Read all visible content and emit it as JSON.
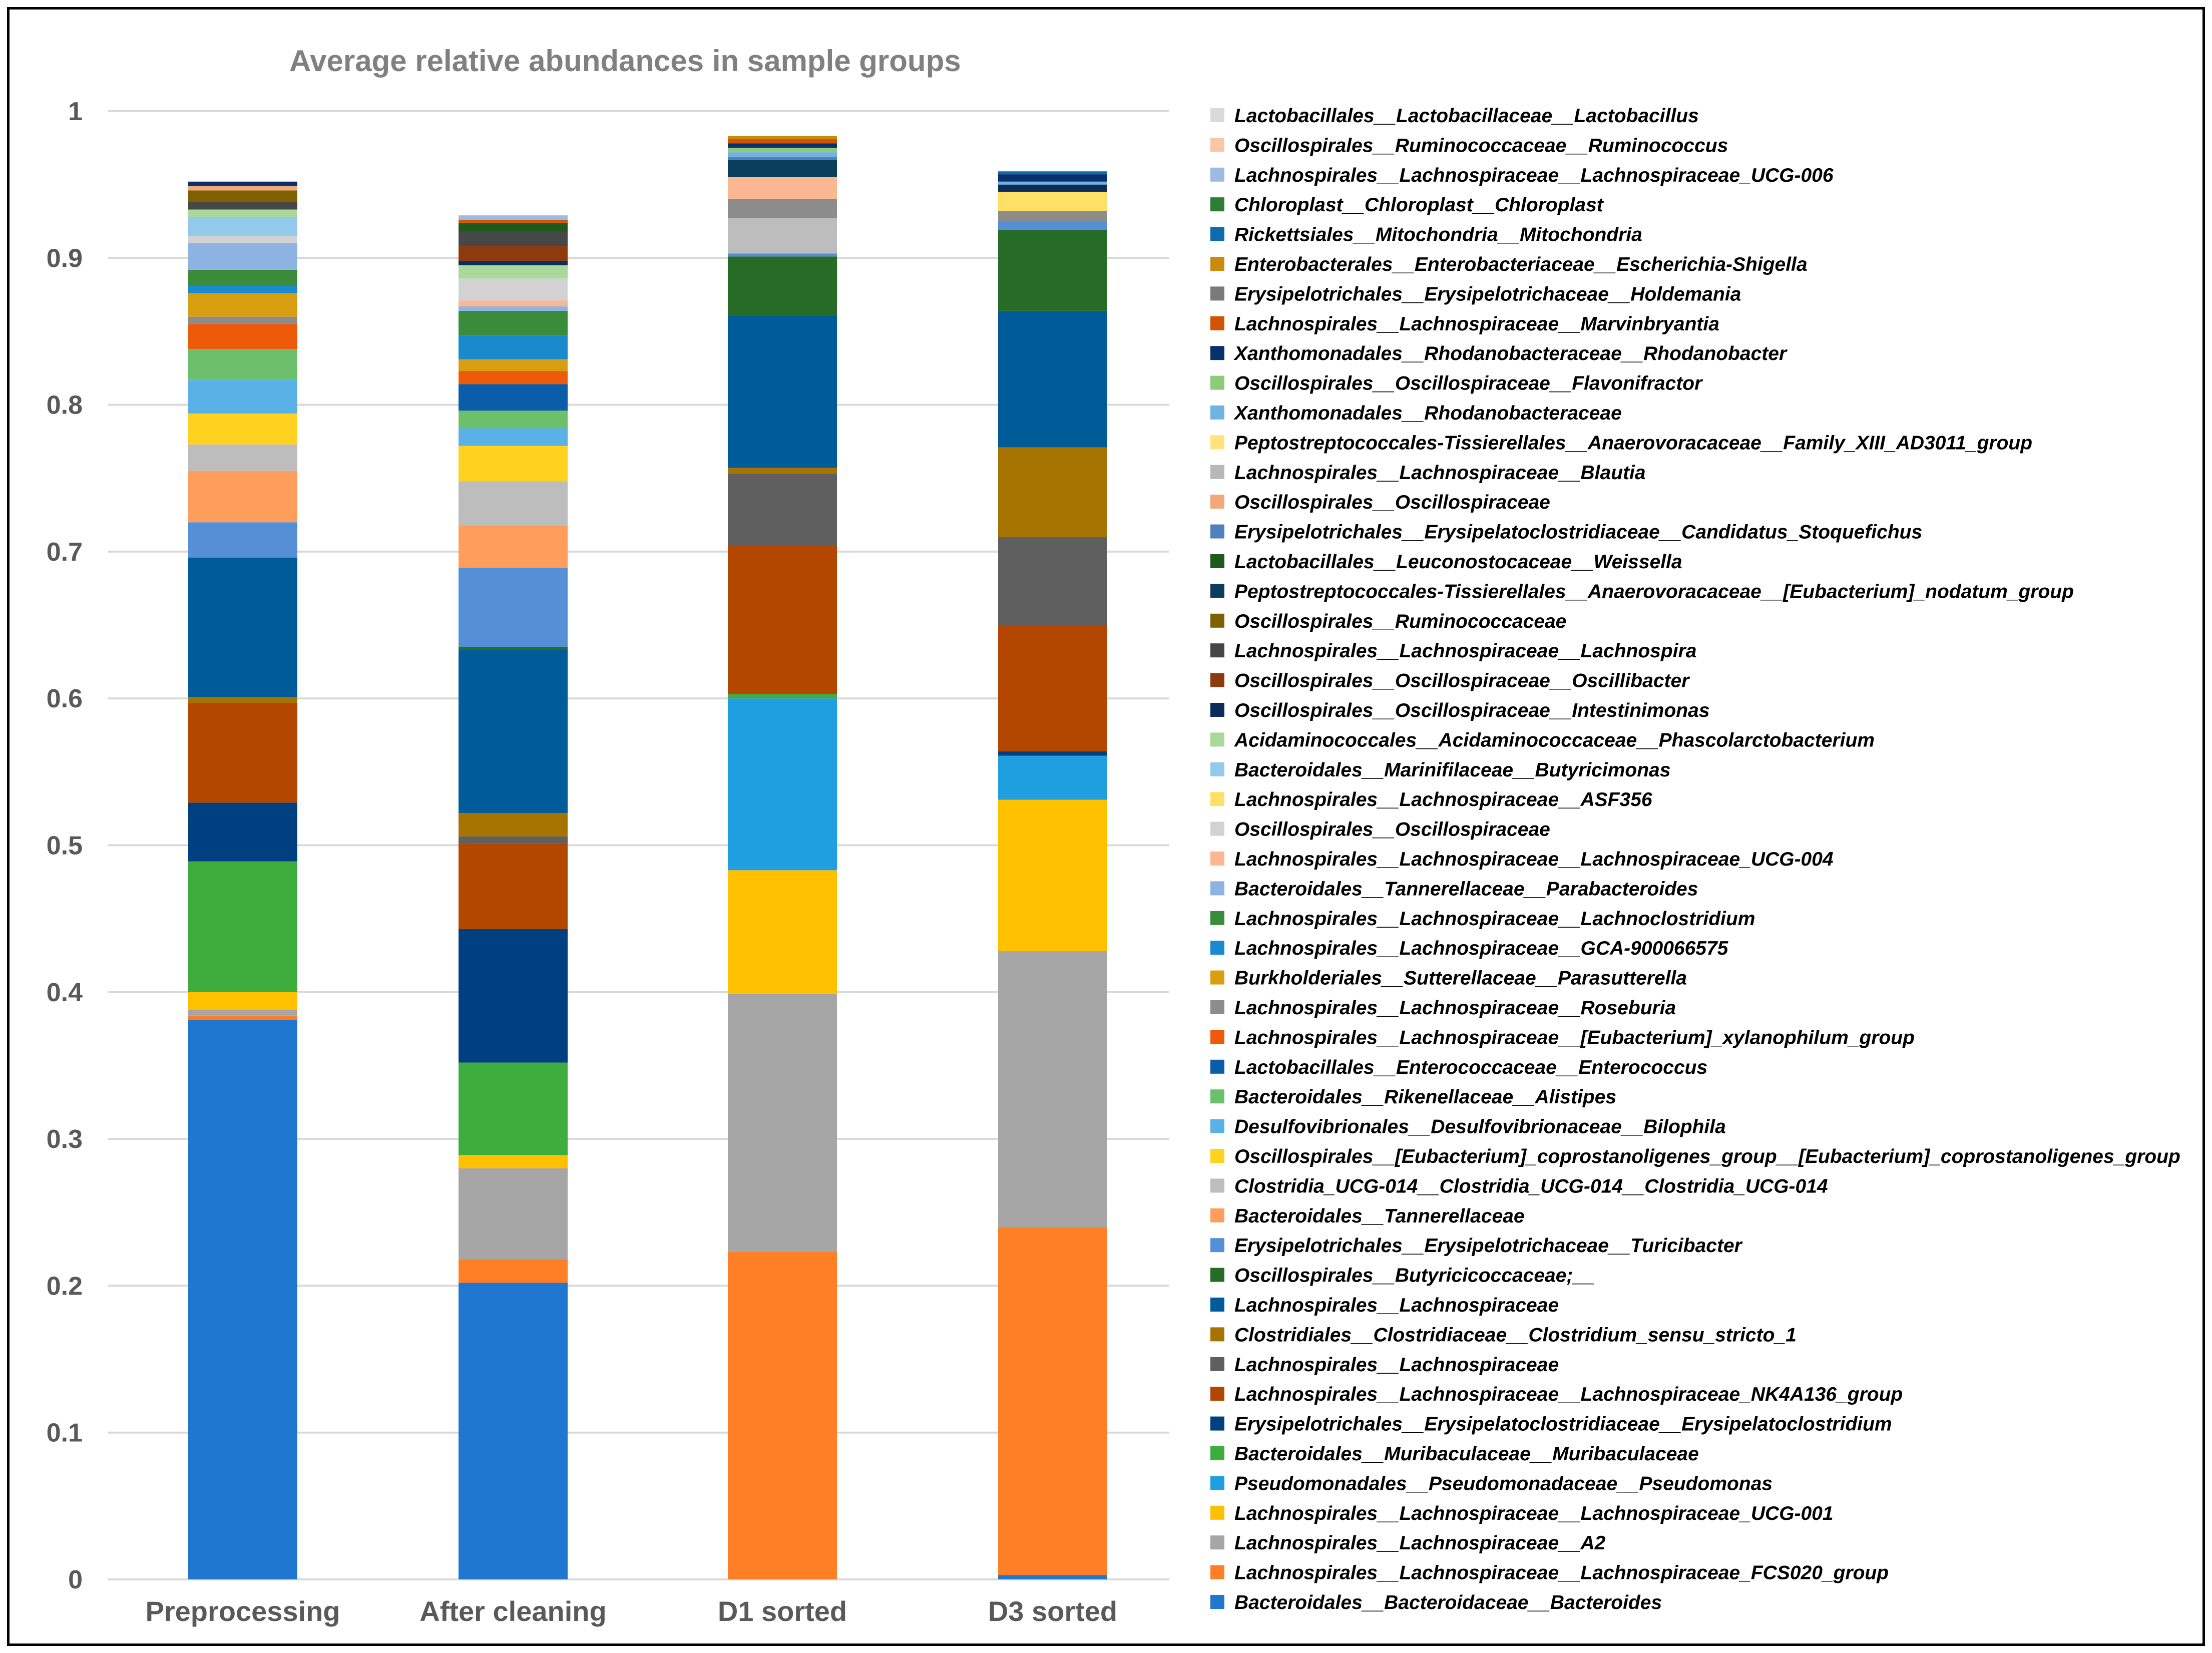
{
  "chart_data": {
    "type": "bar",
    "stacked": true,
    "title": "Average relative abundances in sample groups",
    "xlabel": "",
    "ylabel": "",
    "ylim": [
      0,
      1
    ],
    "yticks": [
      "0",
      "0.1",
      "0.2",
      "0.3",
      "0.4",
      "0.5",
      "0.6",
      "0.7",
      "0.8",
      "0.9",
      "1"
    ],
    "categories": [
      "Preprocessing",
      "After cleaning",
      "D1 sorted",
      "D3 sorted"
    ],
    "legend_position": "right",
    "series": [
      {
        "name": "Bacteroidales__Bacteroidaceae__Bacteroides",
        "color": "#1F77D0",
        "values": [
          0.381,
          0.202,
          0.0,
          0.003
        ]
      },
      {
        "name": "Lachnospirales__Lachnospiraceae__Lachnospiraceae_FCS020_group",
        "color": "#FF7F27",
        "values": [
          0.003,
          0.016,
          0.223,
          0.237
        ]
      },
      {
        "name": "Lachnospirales__Lachnospiraceae__A2",
        "color": "#A6A6A6",
        "values": [
          0.004,
          0.062,
          0.176,
          0.188
        ]
      },
      {
        "name": "Lachnospirales__Lachnospiraceae__Lachnospiraceae_UCG-001",
        "color": "#FFC000",
        "values": [
          0.012,
          0.009,
          0.084,
          0.103
        ]
      },
      {
        "name": "Pseudomonadales__Pseudomonadaceae__Pseudomonas",
        "color": "#1F9FE0",
        "values": [
          0.0,
          0.0,
          0.117,
          0.03
        ]
      },
      {
        "name": "Bacteroidales__Muribaculaceae__Muribaculaceae",
        "color": "#3DAE3D",
        "values": [
          0.089,
          0.063,
          0.003,
          0.0
        ]
      },
      {
        "name": "Erysipelotrichales__Erysipelatoclostridiaceae__Erysipelatoclostridium",
        "color": "#004080",
        "values": [
          0.04,
          0.091,
          0.0,
          0.003
        ]
      },
      {
        "name": "Lachnospirales__Lachnospiraceae__Lachnospiraceae_NK4A136_group",
        "color": "#B34700",
        "values": [
          0.068,
          0.058,
          0.101,
          0.086
        ]
      },
      {
        "name": "Lachnospirales__Lachnospiraceae",
        "color": "#5F5F5F",
        "values": [
          0.0,
          0.005,
          0.049,
          0.06
        ]
      },
      {
        "name": "Clostridiales__Clostridiaceae__Clostridium_sensu_stricto_1",
        "color": "#A67300",
        "values": [
          0.004,
          0.016,
          0.004,
          0.061
        ]
      },
      {
        "name": "Lachnospirales__Lachnospiraceae",
        "color": "#005C99",
        "values": [
          0.095,
          0.111,
          0.104,
          0.093
        ]
      },
      {
        "name": "Oscillospirales__Butyricicoccaceae;__",
        "color": "#266B26",
        "values": [
          0.0,
          0.002,
          0.04,
          0.055
        ]
      },
      {
        "name": "Erysipelotrichales__Erysipelotrichaceae__Turicibacter",
        "color": "#5590D6",
        "values": [
          0.024,
          0.054,
          0.002,
          0.006
        ]
      },
      {
        "name": "Bacteroidales__Tannerellaceae",
        "color": "#FF9E5C",
        "values": [
          0.035,
          0.029,
          0.0,
          0.0
        ]
      },
      {
        "name": "Clostridia_UCG-014__Clostridia_UCG-014__Clostridia_UCG-014",
        "color": "#BDBDBD",
        "values": [
          0.018,
          0.03,
          0.024,
          0.0
        ]
      },
      {
        "name": "Oscillospirales__[Eubacterium]_coprostanoligenes_group__[Eubacterium]_coprostanoligenes_group",
        "color": "#FFD21F",
        "values": [
          0.021,
          0.024,
          0.0,
          0.0
        ]
      },
      {
        "name": "Desulfovibrionales__Desulfovibrionaceae__Bilophila",
        "color": "#59B1E6",
        "values": [
          0.023,
          0.012,
          0.0,
          0.0
        ]
      },
      {
        "name": "Bacteroidales__Rikenellaceae__Alistipes",
        "color": "#6CC06C",
        "values": [
          0.021,
          0.012,
          0.0,
          0.0
        ]
      },
      {
        "name": "Lactobacillales__Enterococcaceae__Enterococcus",
        "color": "#0A5DA8",
        "values": [
          0.0,
          0.018,
          0.0,
          0.0
        ]
      },
      {
        "name": "Lachnospirales__Lachnospiraceae__[Eubacterium]_xylanophilum_group",
        "color": "#ED5A0A",
        "values": [
          0.017,
          0.009,
          0.0,
          0.0
        ]
      },
      {
        "name": "Lachnospirales__Lachnospiraceae__Roseburia",
        "color": "#8C8C8C",
        "values": [
          0.005,
          0.0,
          0.013,
          0.007
        ]
      },
      {
        "name": "Burkholderiales__Sutterellaceae__Parasutterella",
        "color": "#D89E12",
        "values": [
          0.016,
          0.008,
          0.0,
          0.0
        ]
      },
      {
        "name": "Lachnospirales__Lachnospiraceae__GCA-900066575",
        "color": "#1A8ACF",
        "values": [
          0.005,
          0.016,
          0.0,
          0.0
        ]
      },
      {
        "name": "Lachnospirales__Lachnospiraceae__Lachnoclostridium",
        "color": "#3A8C3A",
        "values": [
          0.011,
          0.017,
          0.0,
          0.0
        ]
      },
      {
        "name": "Bacteroidales__Tannerellaceae__Parabacteroides",
        "color": "#8DB3E2",
        "values": [
          0.018,
          0.003,
          0.0,
          0.0
        ]
      },
      {
        "name": "Lachnospirales__Lachnospiraceae__Lachnospiraceae_UCG-004",
        "color": "#FBB692",
        "values": [
          0.0,
          0.004,
          0.015,
          0.0
        ]
      },
      {
        "name": "Oscillospirales__Oscillospiraceae",
        "color": "#D2D2D2",
        "values": [
          0.005,
          0.015,
          0.0,
          0.0
        ]
      },
      {
        "name": "Lachnospirales__Lachnospiraceae__ASF356",
        "color": "#FFE066",
        "values": [
          0.0,
          0.0,
          0.0,
          0.013
        ]
      },
      {
        "name": "Bacteroidales__Marinifilaceae__Butyricimonas",
        "color": "#93C9EB",
        "values": [
          0.013,
          0.0,
          0.0,
          0.0
        ]
      },
      {
        "name": "Acidaminococcales__Acidaminococcaceae__Phascolarctobacterium",
        "color": "#A8D99A",
        "values": [
          0.005,
          0.009,
          0.0,
          0.0
        ]
      },
      {
        "name": "Oscillospirales__Oscillospiraceae__Intestinimonas",
        "color": "#0C2D5A",
        "values": [
          0.0,
          0.003,
          0.0,
          0.005
        ]
      },
      {
        "name": "Oscillospirales__Oscillospiraceae__Oscillibacter",
        "color": "#8C3A0E",
        "values": [
          0.0,
          0.01,
          0.0,
          0.0
        ]
      },
      {
        "name": "Lachnospirales__Lachnospiraceae__Lachnospira",
        "color": "#474747",
        "values": [
          0.005,
          0.01,
          0.0,
          0.0
        ]
      },
      {
        "name": "Oscillospirales__Ruminococcaceae",
        "color": "#7F6000",
        "values": [
          0.008,
          0.0,
          0.0,
          0.0
        ]
      },
      {
        "name": "Peptostreptococcales-Tissierellales__Anaerovoracaceae__[Eubacterium]_nodatum_group",
        "color": "#0B3D5C",
        "values": [
          0.0,
          0.0,
          0.012,
          0.0
        ]
      },
      {
        "name": "Lactobacillales__Leuconostocaceae__Weissella",
        "color": "#1E5A1E",
        "values": [
          0.0,
          0.006,
          0.0,
          0.0
        ]
      },
      {
        "name": "Erysipelotrichales__Erysipelatoclostridiaceae__Candidatus_Stoqueﬁchus",
        "color": "#4F81BD",
        "values": [
          0.0,
          0.0,
          0.002,
          0.0
        ]
      },
      {
        "name": "Oscillospirales__Oscillospiraceae",
        "color": "#F4A77B",
        "values": [
          0.003,
          0.0,
          0.0,
          0.0
        ]
      },
      {
        "name": "Lachnospirales__Lachnospiraceae__Blautia",
        "color": "#B8B8B8",
        "values": [
          0.0,
          0.0,
          0.0,
          0.0
        ]
      },
      {
        "name": "Peptostreptococcales-Tissierellales__Anaerovoracaceae__Family_XIII_AD3011_group",
        "color": "#FFE27A",
        "values": [
          0.0,
          0.0,
          0.0,
          0.0
        ]
      },
      {
        "name": "Xanthomonadales__Rhodanobacteraceae",
        "color": "#6FB4E0",
        "values": [
          0.0,
          0.0,
          0.003,
          0.002
        ]
      },
      {
        "name": "Oscillospirales__Oscillospiraceae__Flavonifractor",
        "color": "#8DCB7A",
        "values": [
          0.0,
          0.0,
          0.003,
          0.0
        ]
      },
      {
        "name": "Xanthomonadales__Rhodanobacteraceae__Rhodanobacter",
        "color": "#08306B",
        "values": [
          0.003,
          0.0,
          0.003,
          0.005
        ]
      },
      {
        "name": "Lachnospirales__Lachnospiraceae__Marvinbryantia",
        "color": "#D35400",
        "values": [
          0.0,
          0.002,
          0.003,
          0.0
        ]
      },
      {
        "name": "Erysipelotrichales__Erysipelotrichaceae__Holdemania",
        "color": "#7A7A7A",
        "values": [
          0.0,
          0.0,
          0.0,
          0.0
        ]
      },
      {
        "name": "Enterobacterales__Enterobacteriaceae__Escherichia-Shigella",
        "color": "#C98A0E",
        "values": [
          0.0,
          0.0,
          0.002,
          0.0
        ]
      },
      {
        "name": "Rickettsiales__Mitochondria__Mitochondria",
        "color": "#0E6BAE",
        "values": [
          0.0,
          0.0,
          0.0,
          0.002
        ]
      },
      {
        "name": "Chloroplast__Chloroplast__Chloroplast",
        "color": "#2E7D32",
        "values": [
          0.0,
          0.0,
          0.0,
          0.0
        ]
      },
      {
        "name": "Lachnospirales__Lachnospiraceae__Lachnospiraceae_UCG-006",
        "color": "#9DBAE0",
        "values": [
          0.0,
          0.003,
          0.0,
          0.0
        ]
      },
      {
        "name": "Oscillospirales__Ruminococcaceae__Ruminococcus",
        "color": "#F9C6A6",
        "values": [
          0.0,
          0.0,
          0.0,
          0.0
        ]
      },
      {
        "name": "Lactobacillales__Lactobacillaceae__Lactobacillus",
        "color": "#DADADA",
        "values": [
          0.0,
          0.0,
          0.0,
          0.0
        ]
      }
    ],
    "legend": [
      {
        "name": "Lactobacillales__Lactobacillaceae__Lactobacillus",
        "color": "#DADADA"
      },
      {
        "name": "Oscillospirales__Ruminococcaceae__Ruminococcus",
        "color": "#F9C6A6"
      },
      {
        "name": "Lachnospirales__Lachnospiraceae__Lachnospiraceae_UCG-006",
        "color": "#9DBAE0"
      },
      {
        "name": "Chloroplast__Chloroplast__Chloroplast",
        "color": "#2E7D32"
      },
      {
        "name": "Rickettsiales__Mitochondria__Mitochondria",
        "color": "#0E6BAE"
      },
      {
        "name": "Enterobacterales__Enterobacteriaceae__Escherichia-Shigella",
        "color": "#C98A0E"
      },
      {
        "name": "Erysipelotrichales__Erysipelotrichaceae__Holdemania",
        "color": "#7A7A7A"
      },
      {
        "name": "Lachnospirales__Lachnospiraceae__Marvinbryantia",
        "color": "#D35400"
      },
      {
        "name": "Xanthomonadales__Rhodanobacteraceae__Rhodanobacter",
        "color": "#08306B"
      },
      {
        "name": "Oscillospirales__Oscillospiraceae__Flavonifractor",
        "color": "#8DCB7A"
      },
      {
        "name": "Xanthomonadales__Rhodanobacteraceae",
        "color": "#6FB4E0"
      },
      {
        "name": "Peptostreptococcales-Tissierellales__Anaerovoracaceae__Family_XIII_AD3011_group",
        "color": "#FFE27A"
      },
      {
        "name": "Lachnospirales__Lachnospiraceae__Blautia",
        "color": "#B8B8B8"
      },
      {
        "name": "Oscillospirales__Oscillospiraceae",
        "color": "#F4A77B"
      },
      {
        "name": "Erysipelotrichales__Erysipelatoclostridiaceae__Candidatus_Stoqueﬁchus",
        "color": "#4F81BD"
      },
      {
        "name": "Lactobacillales__Leuconostocaceae__Weissella",
        "color": "#1E5A1E"
      },
      {
        "name": "Peptostreptococcales-Tissierellales__Anaerovoracaceae__[Eubacterium]_nodatum_group",
        "color": "#0B3D5C"
      },
      {
        "name": "Oscillospirales__Ruminococcaceae",
        "color": "#7F6000"
      },
      {
        "name": "Lachnospirales__Lachnospiraceae__Lachnospira",
        "color": "#474747"
      },
      {
        "name": "Oscillospirales__Oscillospiraceae__Oscillibacter",
        "color": "#8C3A0E"
      },
      {
        "name": "Oscillospirales__Oscillospiraceae__Intestinimonas",
        "color": "#0C2D5A"
      },
      {
        "name": "Acidaminococcales__Acidaminococcaceae__Phascolarctobacterium",
        "color": "#A8D99A"
      },
      {
        "name": "Bacteroidales__Marinifilaceae__Butyricimonas",
        "color": "#93C9EB"
      },
      {
        "name": "Lachnospirales__Lachnospiraceae__ASF356",
        "color": "#FFE066"
      },
      {
        "name": "Oscillospirales__Oscillospiraceae",
        "color": "#D2D2D2"
      },
      {
        "name": "Lachnospirales__Lachnospiraceae__Lachnospiraceae_UCG-004",
        "color": "#FBB692"
      },
      {
        "name": "Bacteroidales__Tannerellaceae__Parabacteroides",
        "color": "#8DB3E2"
      },
      {
        "name": "Lachnospirales__Lachnospiraceae__Lachnoclostridium",
        "color": "#3A8C3A"
      },
      {
        "name": "Lachnospirales__Lachnospiraceae__GCA-900066575",
        "color": "#1A8ACF"
      },
      {
        "name": "Burkholderiales__Sutterellaceae__Parasutterella",
        "color": "#D89E12"
      },
      {
        "name": "Lachnospirales__Lachnospiraceae__Roseburia",
        "color": "#8C8C8C"
      },
      {
        "name": "Lachnospirales__Lachnospiraceae__[Eubacterium]_xylanophilum_group",
        "color": "#ED5A0A"
      },
      {
        "name": "Lactobacillales__Enterococcaceae__Enterococcus",
        "color": "#0A5DA8"
      },
      {
        "name": "Bacteroidales__Rikenellaceae__Alistipes",
        "color": "#6CC06C"
      },
      {
        "name": "Desulfovibrionales__Desulfovibrionaceae__Bilophila",
        "color": "#59B1E6"
      },
      {
        "name": "Oscillospirales__[Eubacterium]_coprostanoligenes_group__[Eubacterium]_coprostanoligenes_group",
        "color": "#FFD21F"
      },
      {
        "name": "Clostridia_UCG-014__Clostridia_UCG-014__Clostridia_UCG-014",
        "color": "#BDBDBD"
      },
      {
        "name": "Bacteroidales__Tannerellaceae",
        "color": "#FF9E5C"
      },
      {
        "name": "Erysipelotrichales__Erysipelotrichaceae__Turicibacter",
        "color": "#5590D6"
      },
      {
        "name": "Oscillospirales__Butyricicoccaceae;__",
        "color": "#266B26"
      },
      {
        "name": "Lachnospirales__Lachnospiraceae",
        "color": "#005C99"
      },
      {
        "name": "Clostridiales__Clostridiaceae__Clostridium_sensu_stricto_1",
        "color": "#A67300"
      },
      {
        "name": "Lachnospirales__Lachnospiraceae",
        "color": "#5F5F5F"
      },
      {
        "name": "Lachnospirales__Lachnospiraceae__Lachnospiraceae_NK4A136_group",
        "color": "#B34700"
      },
      {
        "name": "Erysipelotrichales__Erysipelatoclostridiaceae__Erysipelatoclostridium",
        "color": "#004080"
      },
      {
        "name": "Bacteroidales__Muribaculaceae__Muribaculaceae",
        "color": "#3DAE3D"
      },
      {
        "name": "Pseudomonadales__Pseudomonadaceae__Pseudomonas",
        "color": "#1F9FE0"
      },
      {
        "name": "Lachnospirales__Lachnospiraceae__Lachnospiraceae_UCG-001",
        "color": "#FFC000"
      },
      {
        "name": "Lachnospirales__Lachnospiraceae__A2",
        "color": "#A6A6A6"
      },
      {
        "name": "Lachnospirales__Lachnospiraceae__Lachnospiraceae_FCS020_group",
        "color": "#FF7F27"
      },
      {
        "name": "Bacteroidales__Bacteroidaceae__Bacteroides",
        "color": "#1F77D0"
      }
    ]
  }
}
